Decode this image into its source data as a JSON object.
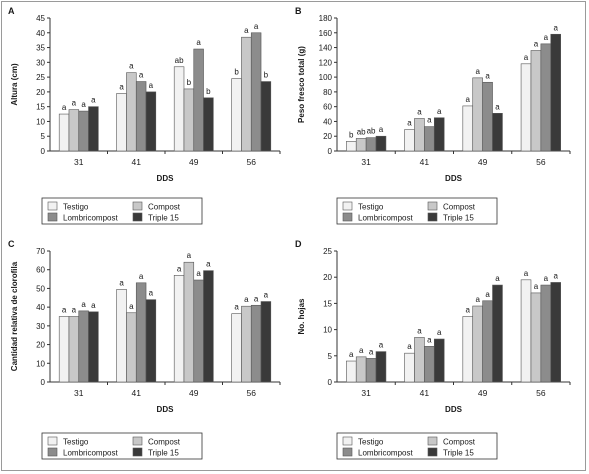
{
  "categories": [
    "31",
    "41",
    "49",
    "56"
  ],
  "colors": {
    "Testigo": "#f2f2f2",
    "Compost": "#c8c8c8",
    "Lombricompost": "#8c8c8c",
    "Triple 15": "#3a3a3a",
    "axis": "#333333"
  },
  "legend": {
    "testigo": "Testigo",
    "compost": "Compost",
    "lombricompost": "Lombricompost",
    "triple15": "Triple 15"
  },
  "chart_data": [
    {
      "panel": "A",
      "type": "bar",
      "ylabel": "Altura (cm)",
      "xlabel": "DDS",
      "ylim": [
        0,
        45
      ],
      "yticks": [
        0,
        5,
        10,
        15,
        20,
        25,
        30,
        35,
        40,
        45
      ],
      "categories": [
        "31",
        "41",
        "49",
        "56"
      ],
      "series": [
        {
          "name": "Testigo",
          "values": [
            12.5,
            19.5,
            28.5,
            24.5
          ],
          "letters": [
            "a",
            "a",
            "ab",
            "b"
          ]
        },
        {
          "name": "Compost",
          "values": [
            14,
            26.5,
            21,
            38.5
          ],
          "letters": [
            "a",
            "a",
            "b",
            "a"
          ]
        },
        {
          "name": "Lombricompost",
          "values": [
            13.5,
            23.5,
            34.5,
            40
          ],
          "letters": [
            "a",
            "a",
            "a",
            "a"
          ]
        },
        {
          "name": "Triple 15",
          "values": [
            15,
            20,
            18,
            23.5
          ],
          "letters": [
            "a",
            "a",
            "b",
            "b"
          ]
        }
      ]
    },
    {
      "panel": "B",
      "type": "bar",
      "ylabel": "Peso fresco total (g)",
      "xlabel": "DDS",
      "ylim": [
        0,
        180
      ],
      "yticks": [
        0,
        20,
        40,
        60,
        80,
        100,
        120,
        140,
        160,
        180
      ],
      "categories": [
        "31",
        "41",
        "49",
        "56"
      ],
      "series": [
        {
          "name": "Testigo",
          "values": [
            13,
            29,
            61,
            118
          ],
          "letters": [
            "b",
            "a",
            "a",
            "a"
          ]
        },
        {
          "name": "Compost",
          "values": [
            17,
            44,
            99,
            136
          ],
          "letters": [
            "ab",
            "a",
            "a",
            "a"
          ]
        },
        {
          "name": "Lombricompost",
          "values": [
            18,
            33,
            93,
            145
          ],
          "letters": [
            "ab",
            "a",
            "a",
            "a"
          ]
        },
        {
          "name": "Triple 15",
          "values": [
            20,
            45,
            51,
            158
          ],
          "letters": [
            "a",
            "a",
            "a",
            "a"
          ]
        }
      ]
    },
    {
      "panel": "C",
      "type": "bar",
      "ylabel": "Cantidad relativa de clorofila",
      "xlabel": "DDS",
      "ylim": [
        0,
        70
      ],
      "yticks": [
        0,
        10,
        20,
        30,
        40,
        50,
        60,
        70
      ],
      "categories": [
        "31",
        "41",
        "49",
        "56"
      ],
      "series": [
        {
          "name": "Testigo",
          "values": [
            35,
            49.5,
            57,
            36.5
          ],
          "letters": [
            "a",
            "a",
            "a",
            "a"
          ]
        },
        {
          "name": "Compost",
          "values": [
            35,
            37,
            64,
            40.5
          ],
          "letters": [
            "a",
            "a",
            "a",
            "a"
          ]
        },
        {
          "name": "Lombricompost",
          "values": [
            38,
            53,
            54.5,
            41
          ],
          "letters": [
            "a",
            "a",
            "a",
            "a"
          ]
        },
        {
          "name": "Triple 15",
          "values": [
            37.5,
            44,
            59.5,
            43
          ],
          "letters": [
            "a",
            "a",
            "a",
            "a"
          ]
        }
      ]
    },
    {
      "panel": "D",
      "type": "bar",
      "ylabel": "No. hojas",
      "xlabel": "DDS",
      "ylim": [
        0,
        25
      ],
      "yticks": [
        0,
        5,
        10,
        15,
        20,
        25
      ],
      "categories": [
        "31",
        "41",
        "49",
        "56"
      ],
      "series": [
        {
          "name": "Testigo",
          "values": [
            4,
            5.5,
            12.5,
            19.5
          ],
          "letters": [
            "a",
            "a",
            "a",
            "a"
          ]
        },
        {
          "name": "Compost",
          "values": [
            4.8,
            8.5,
            14.5,
            17
          ],
          "letters": [
            "a",
            "a",
            "a",
            "a"
          ]
        },
        {
          "name": "Lombricompost",
          "values": [
            4.5,
            6.8,
            15.5,
            18.5
          ],
          "letters": [
            "a",
            "a",
            "a",
            "a"
          ]
        },
        {
          "name": "Triple 15",
          "values": [
            5.8,
            8.2,
            18.5,
            19
          ],
          "letters": [
            "a",
            "a",
            "a",
            "a"
          ]
        }
      ]
    }
  ]
}
